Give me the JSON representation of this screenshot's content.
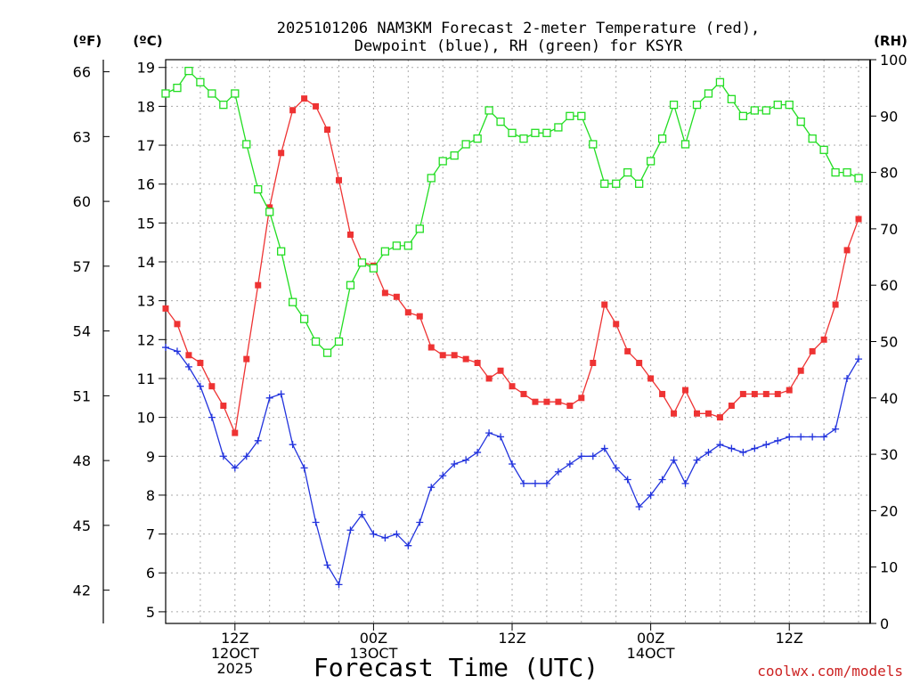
{
  "chart_data": {
    "type": "line",
    "title_lines": [
      "2025101206 NAM3KM Forecast 2-meter Temperature (red),",
      "Dewpoint (blue), RH (green) for KSYR"
    ],
    "xlabel": "Forecast Time (UTC)",
    "credit": "coolwx.com/models",
    "x_range": [
      0,
      61
    ],
    "x_ticks": [
      {
        "x": 6,
        "lines": [
          "12Z",
          "12OCT",
          "2025"
        ]
      },
      {
        "x": 18,
        "lines": [
          "00Z",
          "13OCT"
        ]
      },
      {
        "x": 30,
        "lines": [
          "12Z"
        ]
      },
      {
        "x": 42,
        "lines": [
          "00Z",
          "14OCT"
        ]
      },
      {
        "x": 54,
        "lines": [
          "12Z"
        ]
      }
    ],
    "celsius_axis": {
      "unit_label": "(ºC)",
      "range": [
        4.7,
        19.2
      ],
      "ticks": [
        5,
        6,
        7,
        8,
        9,
        10,
        11,
        12,
        13,
        14,
        15,
        16,
        17,
        18,
        19
      ]
    },
    "fahrenheit_axis": {
      "unit_label": "(ºF)",
      "ticks": [
        42,
        45,
        48,
        51,
        54,
        57,
        60,
        63,
        66
      ]
    },
    "rh_axis": {
      "unit_label": "(RH)",
      "range": [
        0,
        100
      ],
      "ticks": [
        0,
        10,
        20,
        30,
        40,
        50,
        60,
        70,
        80,
        90,
        100
      ]
    },
    "series": [
      {
        "name": "Temperature",
        "color": "#ee3333",
        "marker": "filled-square",
        "axis": "celsius",
        "values": [
          12.8,
          12.4,
          11.6,
          11.4,
          10.8,
          10.3,
          9.6,
          11.5,
          13.4,
          15.4,
          16.8,
          17.9,
          18.2,
          18.0,
          17.4,
          16.1,
          14.7,
          14.0,
          13.9,
          13.2,
          13.1,
          12.7,
          12.6,
          11.8,
          11.6,
          11.6,
          11.5,
          11.4,
          11.0,
          11.2,
          10.8,
          10.6,
          10.4,
          10.4,
          10.4,
          10.3,
          10.5,
          11.4,
          12.9,
          12.4,
          11.7,
          11.4,
          11.0,
          10.6,
          10.1,
          10.7,
          10.1,
          10.1,
          10.0,
          10.3,
          10.6,
          10.6,
          10.6,
          10.6,
          10.7,
          11.2,
          11.7,
          12.0,
          12.9,
          14.3,
          15.1
        ]
      },
      {
        "name": "Dewpoint",
        "color": "#2233dd",
        "marker": "plus",
        "axis": "celsius",
        "values": [
          11.8,
          11.7,
          11.3,
          10.8,
          10.0,
          9.0,
          8.7,
          9.0,
          9.4,
          10.5,
          10.6,
          9.3,
          8.7,
          7.3,
          6.2,
          5.7,
          7.1,
          7.5,
          7.0,
          6.9,
          7.0,
          6.7,
          7.3,
          8.2,
          8.5,
          8.8,
          8.9,
          9.1,
          9.6,
          9.5,
          8.8,
          8.3,
          8.3,
          8.3,
          8.6,
          8.8,
          9.0,
          9.0,
          9.2,
          8.7,
          8.4,
          7.7,
          8.0,
          8.4,
          8.9,
          8.3,
          8.9,
          9.1,
          9.3,
          9.2,
          9.1,
          9.2,
          9.3,
          9.4,
          9.5,
          9.5,
          9.5,
          9.5,
          9.7,
          11.0,
          11.5
        ]
      },
      {
        "name": "RH",
        "color": "#22dd22",
        "marker": "open-square",
        "axis": "rh",
        "values": [
          94,
          95,
          98,
          96,
          94,
          92,
          94,
          85,
          77,
          73,
          66,
          57,
          54,
          50,
          48,
          50,
          60,
          64,
          63,
          66,
          67,
          67,
          70,
          79,
          82,
          83,
          85,
          86,
          91,
          89,
          87,
          86,
          87,
          87,
          88,
          90,
          90,
          85,
          78,
          78,
          80,
          78,
          82,
          86,
          92,
          85,
          92,
          94,
          96,
          93,
          90,
          91,
          91,
          92,
          92,
          89,
          86,
          84,
          80,
          80,
          79
        ]
      }
    ]
  }
}
